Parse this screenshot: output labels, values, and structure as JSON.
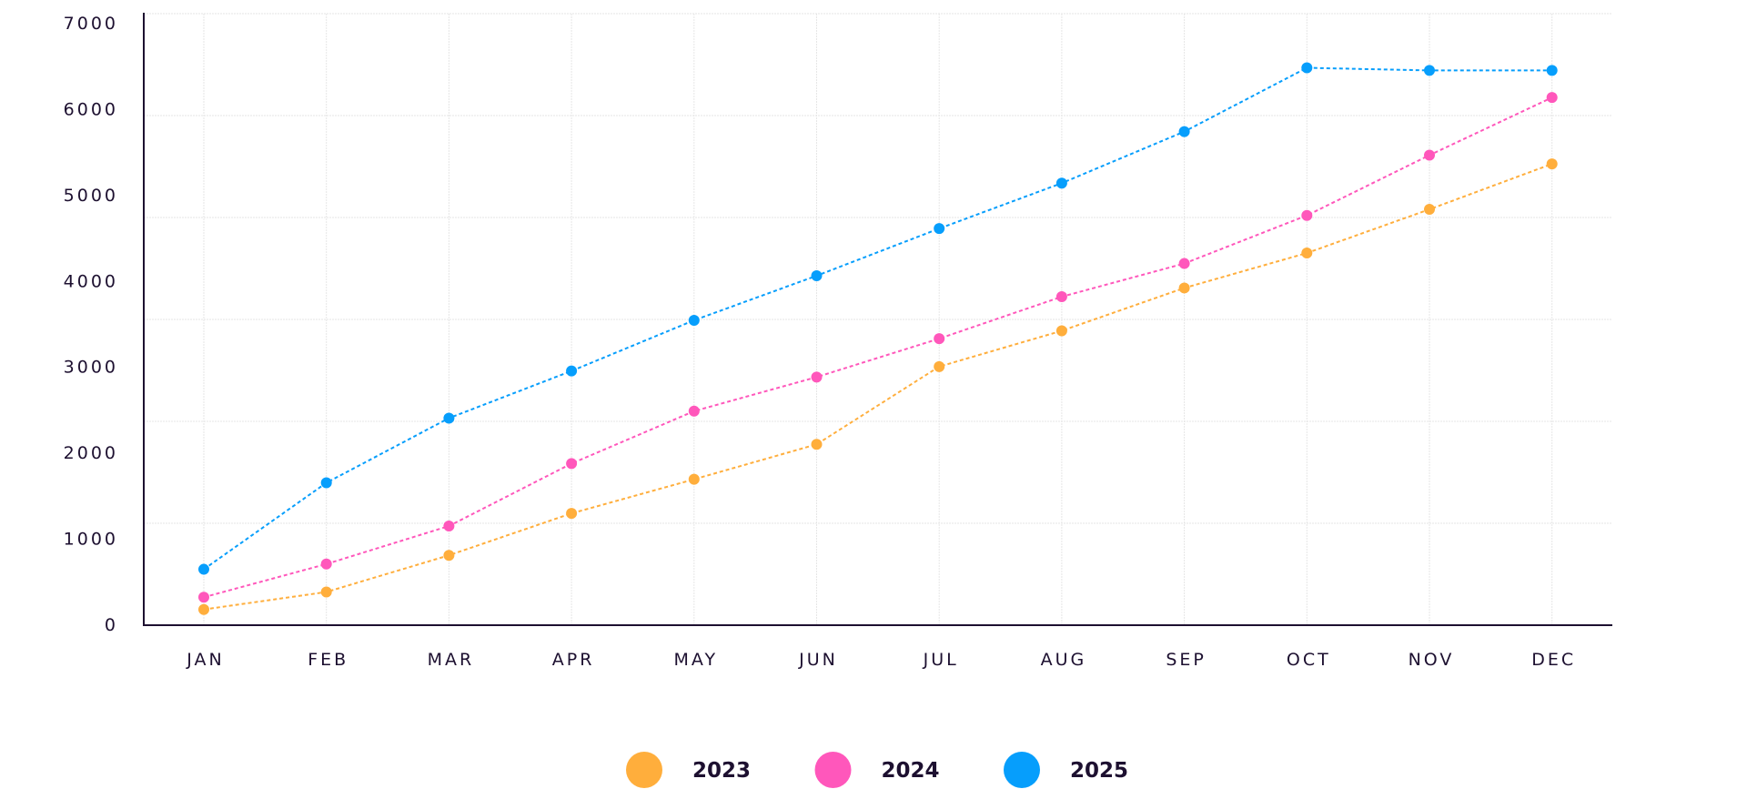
{
  "chart_data": {
    "type": "line",
    "title": "",
    "xlabel": "",
    "ylabel": "",
    "categories": [
      "JAN",
      "FEB",
      "MAR",
      "APR",
      "MAY",
      "JUN",
      "JUL",
      "AUG",
      "SEP",
      "OCT",
      "NOV",
      "DEC"
    ],
    "ylim": [
      0,
      7000
    ],
    "yticks": [
      "0",
      "1000",
      "2000",
      "3000",
      "4000",
      "5000",
      "6000",
      "7000"
    ],
    "grid": true,
    "legend_position": "bottom",
    "line_style": "dotted",
    "series": [
      {
        "name": "2023",
        "color": "#ffae3c",
        "values": [
          180,
          380,
          800,
          1280,
          1670,
          2070,
          2960,
          3370,
          3860,
          4260,
          4760,
          5280
        ]
      },
      {
        "name": "2024",
        "color": "#ff57bb",
        "values": [
          320,
          700,
          1135,
          1850,
          2450,
          2840,
          3280,
          3760,
          4140,
          4690,
          5380,
          6040
        ]
      },
      {
        "name": "2025",
        "color": "#069efc",
        "values": [
          640,
          1630,
          2370,
          2910,
          3490,
          4000,
          4540,
          5060,
          5650,
          6380,
          6350,
          6350
        ]
      }
    ]
  }
}
